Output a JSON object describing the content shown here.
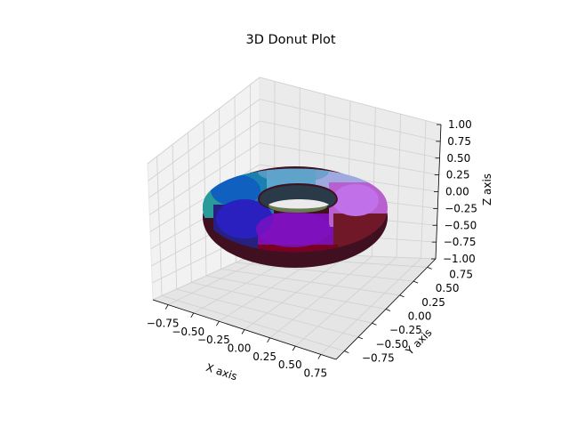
{
  "chart_data": {
    "type": "surface3d",
    "title": "3D Donut Plot",
    "xlabel": "X axis",
    "ylabel": "Y axis",
    "zlabel": "Z axis",
    "surface": {
      "shape": "torus",
      "major_radius": 0.6,
      "minor_radius": 0.2,
      "colored_patches": true
    },
    "xlim": [
      -0.9,
      0.9
    ],
    "ylim": [
      -0.9,
      0.9
    ],
    "zlim": [
      -1.0,
      1.0
    ],
    "x_ticks": [
      "−0.75",
      "−0.50",
      "−0.25",
      "0.00",
      "0.25",
      "0.50",
      "0.75"
    ],
    "y_ticks": [
      "−0.75",
      "−0.50",
      "−0.25",
      "0.00",
      "0.25",
      "0.50",
      "0.75"
    ],
    "z_ticks": [
      "−1.00",
      "−0.75",
      "−0.50",
      "−0.25",
      "0.00",
      "0.25",
      "0.50",
      "0.75",
      "1.00"
    ],
    "x_tick_values": [
      -0.75,
      -0.5,
      -0.25,
      0,
      0.25,
      0.5,
      0.75
    ],
    "y_tick_values": [
      -0.75,
      -0.5,
      -0.25,
      0,
      0.25,
      0.5,
      0.75
    ],
    "z_tick_values": [
      -1,
      -0.75,
      -0.5,
      -0.25,
      0,
      0.25,
      0.5,
      0.75,
      1
    ],
    "grid": true,
    "patch_colors": [
      "#2a9a9a",
      "#5aa0d0",
      "#a0a8e8",
      "#c060e0",
      "#1a60c0",
      "#2a20c0",
      "#7a10b0",
      "#800020",
      "#1a1a60",
      "#601018"
    ]
  }
}
